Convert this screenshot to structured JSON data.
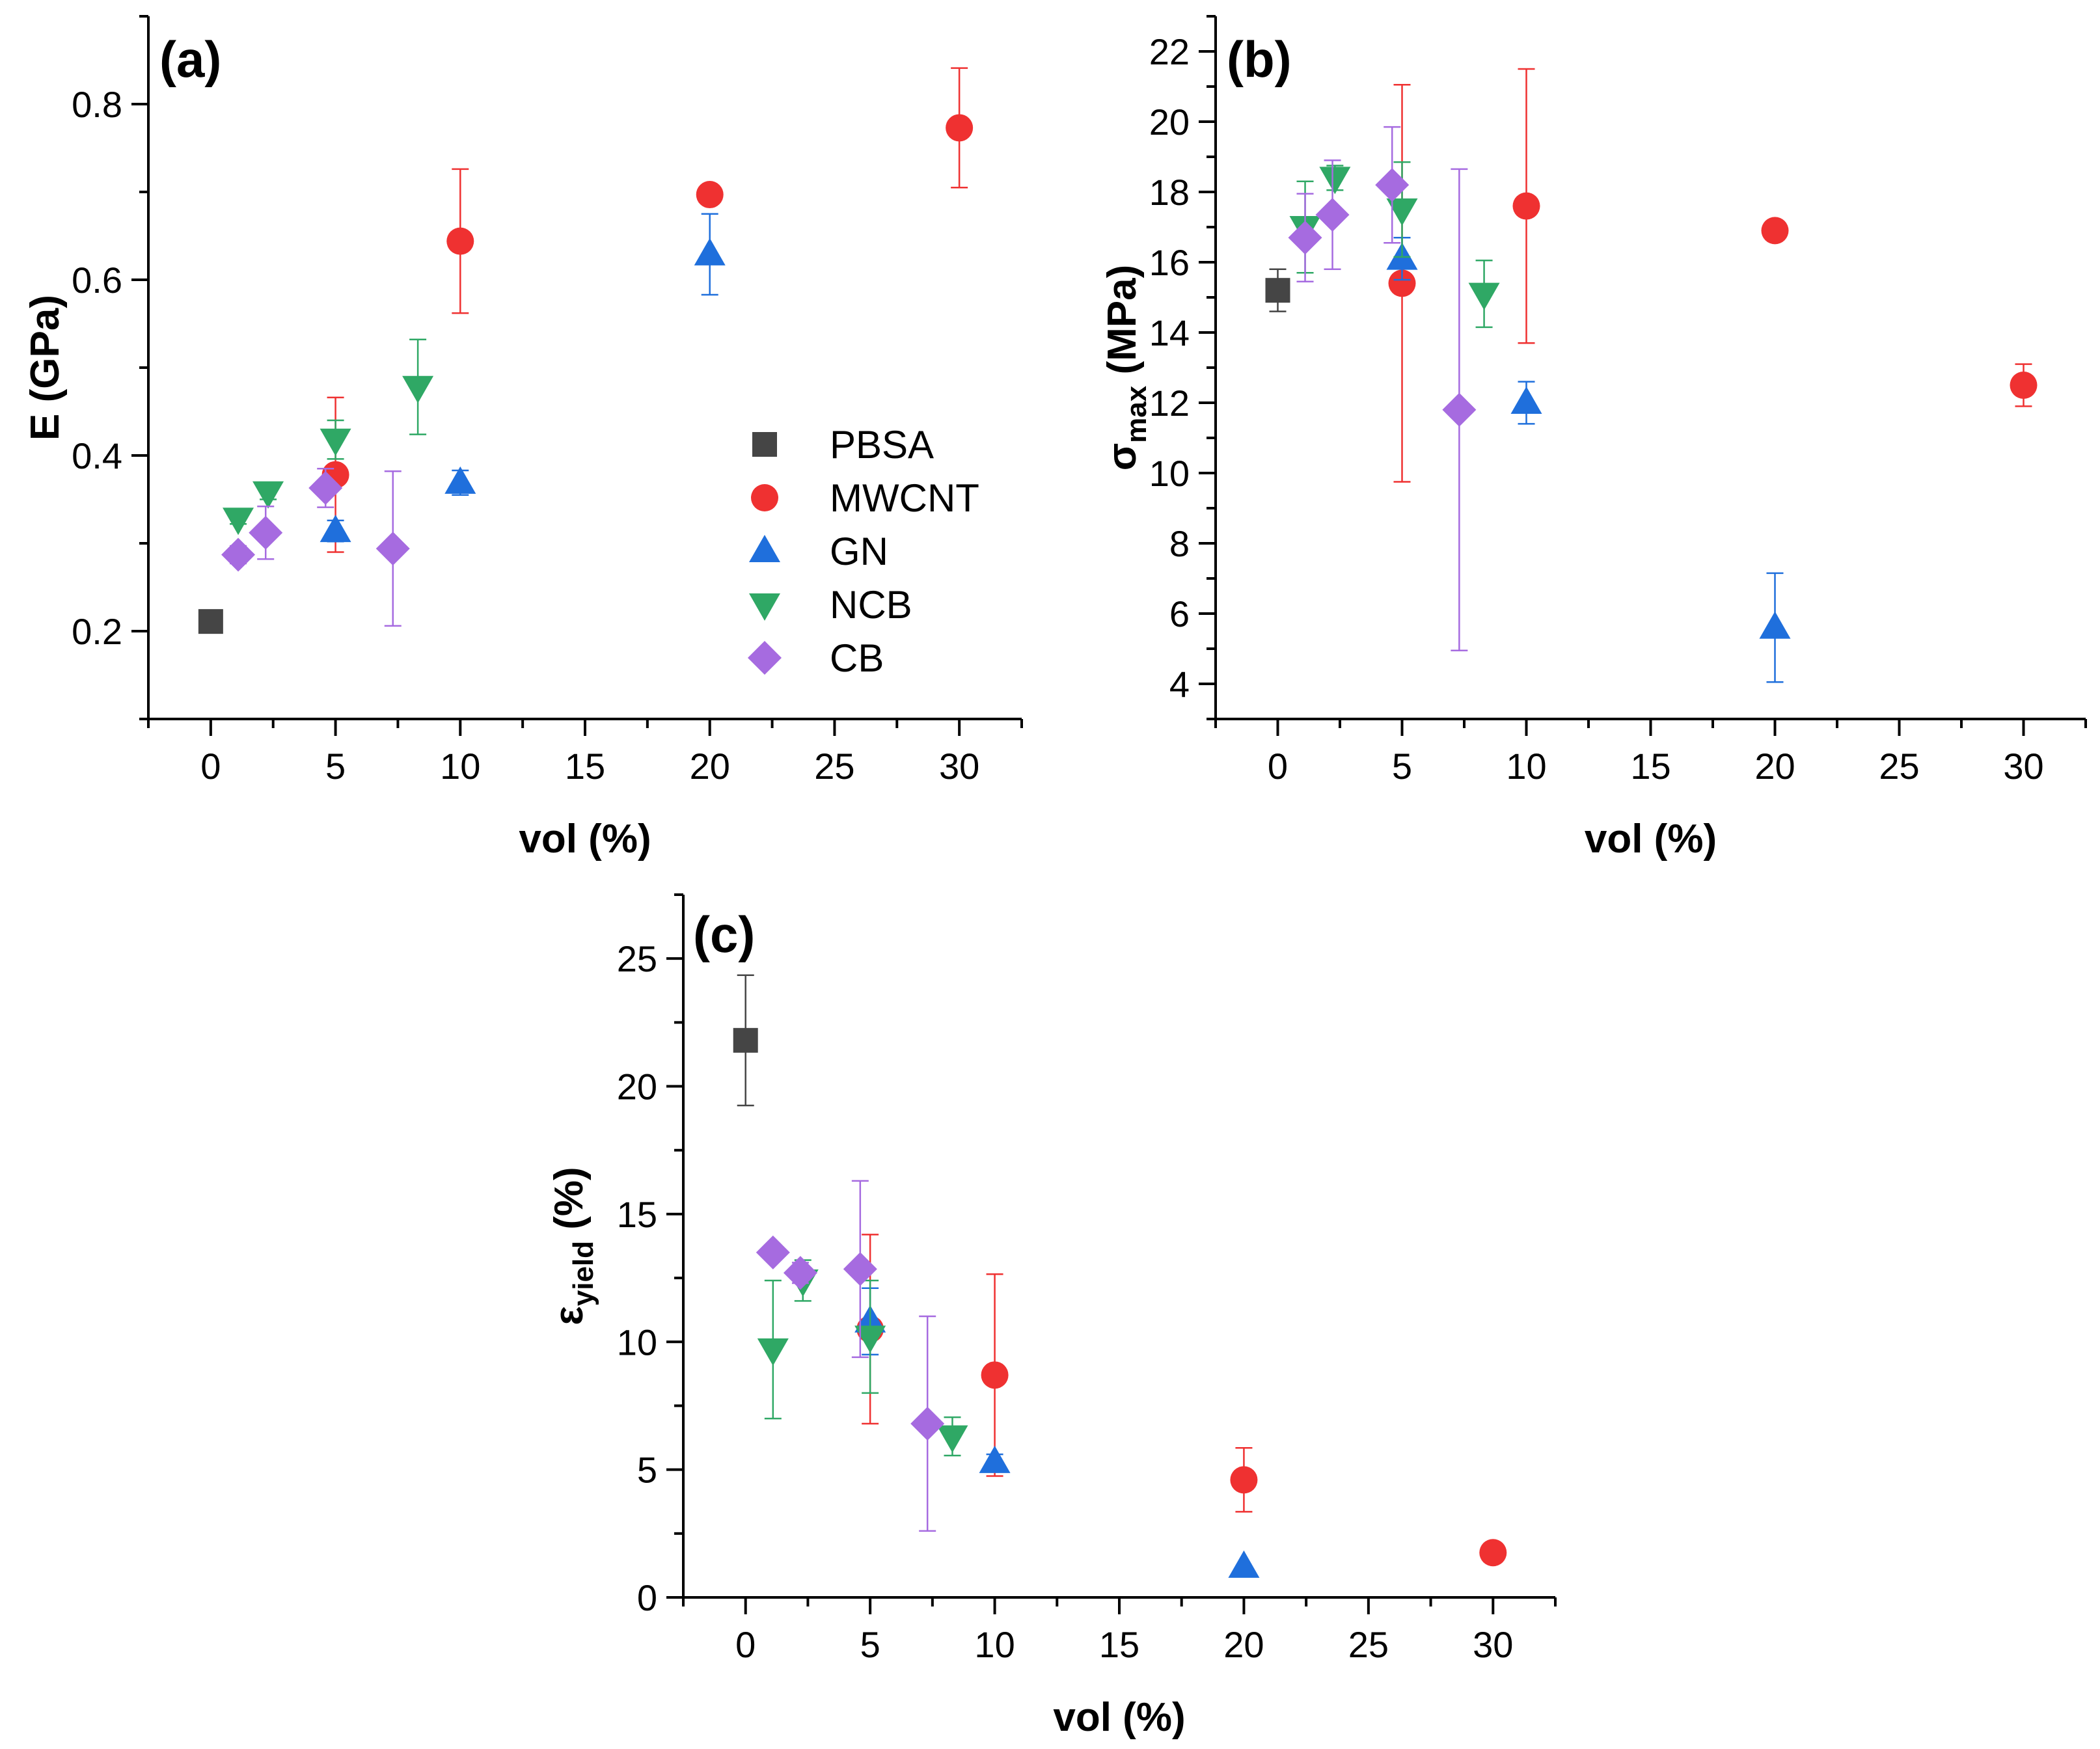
{
  "chart_data": [
    {
      "type": "scatter",
      "panel": "(a)",
      "title": "",
      "xlabel": "vol (%)",
      "ylabel": "E (GPa)",
      "xlim": [
        -2.5,
        32.5
      ],
      "ylim": [
        0.1,
        0.9
      ],
      "xticks": [
        0,
        5,
        10,
        15,
        20,
        25,
        30
      ],
      "yticks": [
        0.2,
        0.4,
        0.6,
        0.8
      ],
      "ytick_labels": [
        "0.2",
        "0.4",
        "0.6",
        "0.8"
      ],
      "legend": "center-right",
      "series": [
        {
          "name": "PBSA",
          "marker": "square",
          "color": "#454545",
          "points": [
            {
              "x": 0,
              "y": 0.211,
              "err": 0
            }
          ]
        },
        {
          "name": "MWCNT",
          "marker": "circle",
          "color": "#ef3131",
          "points": [
            {
              "x": 5,
              "y": 0.378,
              "err": 0.088
            },
            {
              "x": 10,
              "y": 0.644,
              "err": 0.082
            },
            {
              "x": 20,
              "y": 0.697,
              "err": 0
            },
            {
              "x": 30,
              "y": 0.773,
              "err": 0.068
            }
          ]
        },
        {
          "name": "GN",
          "marker": "triangle-up",
          "color": "#1f6fdc",
          "points": [
            {
              "x": 5,
              "y": 0.314,
              "err": 0.012
            },
            {
              "x": 10,
              "y": 0.369,
              "err": 0.014
            },
            {
              "x": 20,
              "y": 0.629,
              "err": 0.046
            }
          ]
        },
        {
          "name": "NCB",
          "marker": "triangle-down",
          "color": "#2fa865",
          "points": [
            {
              "x": 1.1,
              "y": 0.328,
              "err": 0.006
            },
            {
              "x": 2.3,
              "y": 0.358,
              "err": 0.008
            },
            {
              "x": 5.0,
              "y": 0.418,
              "err": 0.022
            },
            {
              "x": 8.3,
              "y": 0.478,
              "err": 0.054
            }
          ]
        },
        {
          "name": "CB",
          "marker": "diamond",
          "color": "#a66be0",
          "points": [
            {
              "x": 1.1,
              "y": 0.287,
              "err": 0.01
            },
            {
              "x": 2.2,
              "y": 0.312,
              "err": 0.03
            },
            {
              "x": 4.6,
              "y": 0.363,
              "err": 0.022
            },
            {
              "x": 7.3,
              "y": 0.294,
              "err": 0.088
            }
          ]
        }
      ]
    },
    {
      "type": "scatter",
      "panel": "(b)",
      "title": "",
      "xlabel": "vol (%)",
      "ylabel": "σmax (MPa)",
      "ylabel_main": "σ",
      "ylabel_sub": "max",
      "ylabel_unit": "(MPa)",
      "xlim": [
        -2.5,
        32.5
      ],
      "ylim": [
        3,
        23
      ],
      "xticks": [
        0,
        5,
        10,
        15,
        20,
        25,
        30
      ],
      "yticks": [
        4,
        6,
        8,
        10,
        12,
        14,
        16,
        18,
        20,
        22
      ],
      "series": [
        {
          "name": "PBSA",
          "marker": "square",
          "color": "#454545",
          "points": [
            {
              "x": 0,
              "y": 15.2,
              "err": 0.6
            }
          ]
        },
        {
          "name": "MWCNT",
          "marker": "circle",
          "color": "#ef3131",
          "points": [
            {
              "x": 5,
              "y": 15.4,
              "err": 5.65
            },
            {
              "x": 10,
              "y": 17.6,
              "err": 3.9
            },
            {
              "x": 20,
              "y": 16.9,
              "err": 0
            },
            {
              "x": 30,
              "y": 12.5,
              "err": 0.6
            }
          ]
        },
        {
          "name": "GN",
          "marker": "triangle-up",
          "color": "#1f6fdc",
          "points": [
            {
              "x": 5,
              "y": 16.1,
              "err": 0.6
            },
            {
              "x": 10,
              "y": 12.0,
              "err": 0.6
            },
            {
              "x": 20,
              "y": 5.6,
              "err": 1.55
            }
          ]
        },
        {
          "name": "NCB",
          "marker": "triangle-down",
          "color": "#2fa865",
          "points": [
            {
              "x": 1.1,
              "y": 17.0,
              "err": 1.3
            },
            {
              "x": 2.3,
              "y": 18.4,
              "err": 0.35
            },
            {
              "x": 5.0,
              "y": 17.5,
              "err": 1.35
            },
            {
              "x": 8.3,
              "y": 15.1,
              "err": 0.95
            }
          ]
        },
        {
          "name": "CB",
          "marker": "diamond",
          "color": "#a66be0",
          "points": [
            {
              "x": 1.1,
              "y": 16.7,
              "err": 1.25
            },
            {
              "x": 2.2,
              "y": 17.35,
              "err": 1.55
            },
            {
              "x": 4.6,
              "y": 18.2,
              "err": 1.65
            },
            {
              "x": 7.3,
              "y": 11.8,
              "err": 6.85
            }
          ]
        }
      ]
    },
    {
      "type": "scatter",
      "panel": "(c)",
      "title": "",
      "xlabel": "vol (%)",
      "ylabel": "εyield (%)",
      "ylabel_main": "ε",
      "ylabel_sub": "yield",
      "ylabel_unit": "(%)",
      "xlim": [
        -2.5,
        32.5
      ],
      "ylim": [
        0,
        27.5
      ],
      "xticks": [
        0,
        5,
        10,
        15,
        20,
        25,
        30
      ],
      "yticks": [
        0,
        5,
        10,
        15,
        20,
        25
      ],
      "series": [
        {
          "name": "PBSA",
          "marker": "square",
          "color": "#454545",
          "points": [
            {
              "x": 0,
              "y": 21.8,
              "err": 2.55
            }
          ]
        },
        {
          "name": "MWCNT",
          "marker": "circle",
          "color": "#ef3131",
          "points": [
            {
              "x": 5,
              "y": 10.5,
              "err": 3.7
            },
            {
              "x": 10,
              "y": 8.7,
              "err": 3.95
            },
            {
              "x": 20,
              "y": 4.6,
              "err": 1.25
            },
            {
              "x": 30,
              "y": 1.75,
              "err": 0
            }
          ]
        },
        {
          "name": "GN",
          "marker": "triangle-up",
          "color": "#1f6fdc",
          "points": [
            {
              "x": 5,
              "y": 10.8,
              "err": 1.3
            },
            {
              "x": 10,
              "y": 5.3,
              "err": 0.3
            },
            {
              "x": 20,
              "y": 1.2,
              "err": 0
            }
          ]
        },
        {
          "name": "NCB",
          "marker": "triangle-down",
          "color": "#2fa865",
          "points": [
            {
              "x": 1.1,
              "y": 9.7,
              "err": 2.7
            },
            {
              "x": 2.3,
              "y": 12.4,
              "err": 0.8
            },
            {
              "x": 5.0,
              "y": 10.2,
              "err": 2.2
            },
            {
              "x": 8.3,
              "y": 6.3,
              "err": 0.75
            }
          ]
        },
        {
          "name": "CB",
          "marker": "diamond",
          "color": "#a66be0",
          "points": [
            {
              "x": 1.1,
              "y": 13.5,
              "err": 0
            },
            {
              "x": 2.2,
              "y": 12.7,
              "err": 0.4
            },
            {
              "x": 4.6,
              "y": 12.85,
              "err": 3.45
            },
            {
              "x": 7.3,
              "y": 6.8,
              "err": 4.2
            }
          ]
        }
      ]
    }
  ]
}
